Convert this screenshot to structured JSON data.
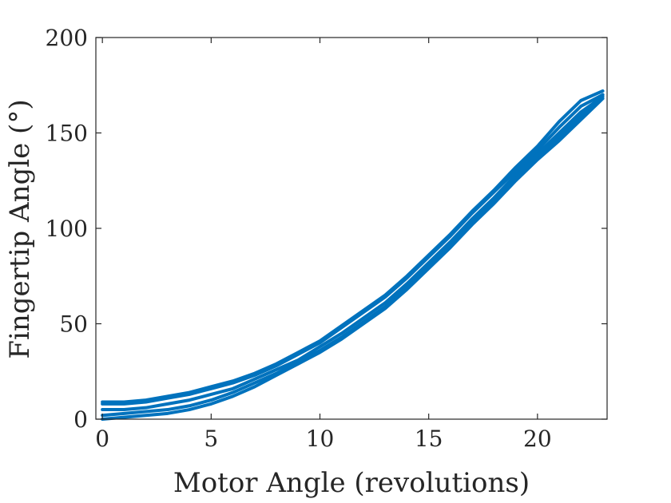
{
  "chart_data": {
    "type": "line",
    "xlabel": "Motor Angle (revolutions)",
    "ylabel": "Fingertip Angle (°)",
    "xlim": [
      -0.3,
      23.2
    ],
    "ylim": [
      0,
      200
    ],
    "xticks": [
      "0",
      "5",
      "10",
      "15",
      "20"
    ],
    "yticks": [
      "0",
      "50",
      "100",
      "150",
      "200"
    ],
    "xtick_values": [
      0,
      5,
      10,
      15,
      20
    ],
    "ytick_values": [
      0,
      50,
      100,
      150,
      200
    ],
    "grid": false,
    "line_color": "#0072BD",
    "series": [
      {
        "x": [
          0,
          1,
          2,
          3,
          4,
          5,
          6,
          7,
          8,
          9,
          10,
          11,
          12,
          13,
          14,
          15,
          16,
          17,
          18,
          19,
          20,
          21,
          22,
          23
        ],
        "y": [
          9,
          9,
          10,
          12,
          14,
          17,
          20,
          24,
          29,
          35,
          41,
          49,
          57,
          65,
          75,
          86,
          97,
          109,
          120,
          132,
          143,
          156,
          167,
          172
        ]
      },
      {
        "x": [
          0,
          1,
          2,
          3,
          4,
          5,
          6,
          7,
          8,
          9,
          10,
          11,
          12,
          13,
          14,
          15,
          16,
          17,
          18,
          19,
          20,
          21,
          22,
          23
        ],
        "y": [
          8,
          8,
          9,
          11,
          13,
          16,
          19,
          23,
          28,
          34,
          40,
          48,
          56,
          64,
          74,
          85,
          96,
          108,
          119,
          130,
          141,
          153,
          164,
          170
        ]
      },
      {
        "x": [
          0,
          1,
          2,
          3,
          4,
          5,
          6,
          7,
          8,
          9,
          10,
          11,
          12,
          13,
          14,
          15,
          16,
          17,
          18,
          19,
          20,
          21,
          22,
          23
        ],
        "y": [
          5,
          5,
          6,
          8,
          10,
          13,
          16,
          21,
          26,
          31,
          38,
          45,
          53,
          61,
          71,
          82,
          93,
          105,
          116,
          128,
          139,
          150,
          161,
          169
        ]
      },
      {
        "x": [
          0,
          1,
          2,
          3,
          4,
          5,
          6,
          7,
          8,
          9,
          10,
          11,
          12,
          13,
          14,
          15,
          16,
          17,
          18,
          19,
          20,
          21,
          22,
          23
        ],
        "y": [
          2,
          3,
          4,
          5,
          7,
          10,
          14,
          19,
          24,
          30,
          36,
          43,
          51,
          59,
          69,
          80,
          91,
          103,
          114,
          126,
          137,
          148,
          159,
          170
        ]
      },
      {
        "x": [
          0,
          1,
          2,
          3,
          4,
          5,
          6,
          7,
          8,
          9,
          10,
          11,
          12,
          13,
          14,
          15,
          16,
          17,
          18,
          19,
          20,
          21,
          22,
          23
        ],
        "y": [
          0,
          1,
          2,
          3,
          5,
          8,
          12,
          17,
          23,
          29,
          35,
          42,
          50,
          58,
          68,
          79,
          90,
          102,
          113,
          125,
          136,
          146,
          157,
          168
        ]
      }
    ]
  }
}
